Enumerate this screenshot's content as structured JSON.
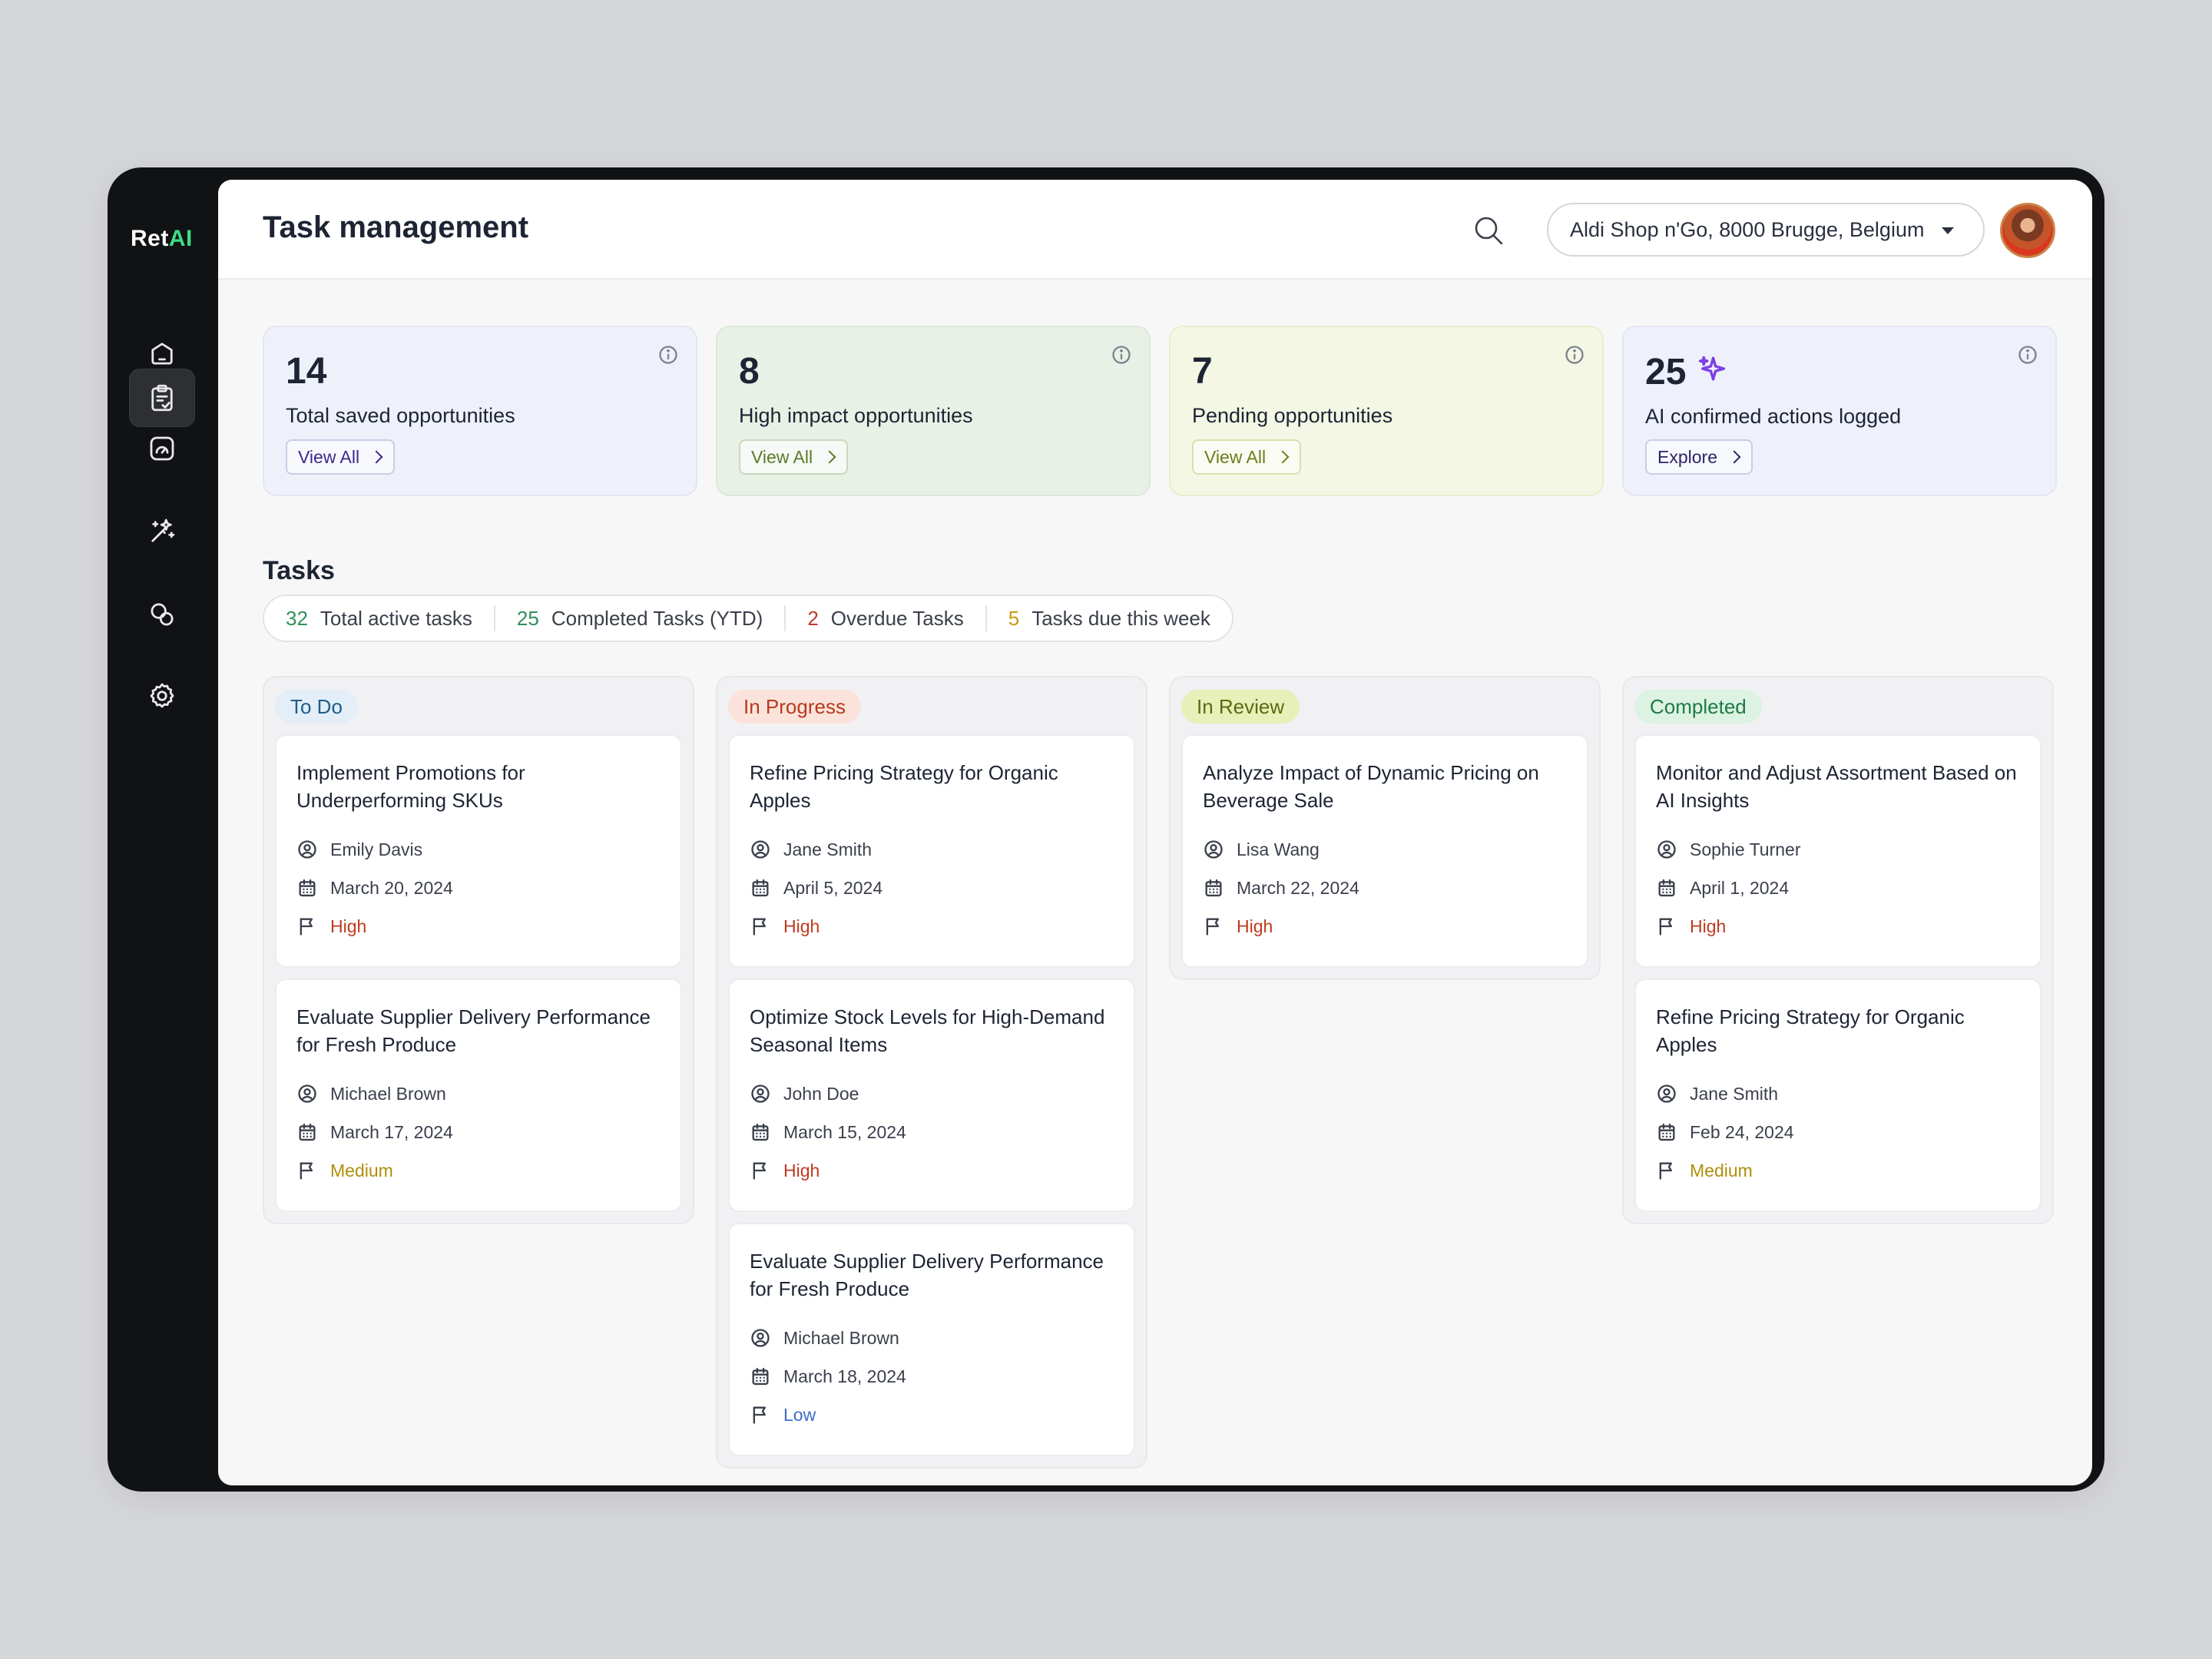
{
  "app": {
    "logo_prefix": "Ret",
    "logo_suffix": "AI"
  },
  "header": {
    "title": "Task management",
    "store": "Aldi Shop n'Go, 8000 Brugge, Belgium"
  },
  "sidebar": {
    "items": [
      {
        "name": "home",
        "icon": "home-icon",
        "active": false
      },
      {
        "name": "tasks",
        "icon": "clipboard-check-icon",
        "active": true
      },
      {
        "name": "dashboard",
        "icon": "gauge-icon",
        "active": false
      },
      {
        "name": "ai",
        "icon": "magic-wand-icon",
        "active": false
      },
      {
        "name": "shapes",
        "icon": "shapes-icon",
        "active": false
      },
      {
        "name": "settings",
        "icon": "gear-icon",
        "active": false
      }
    ]
  },
  "stats": [
    {
      "value": "14",
      "label": "Total saved opportunities",
      "action": "View All",
      "bg": "#eef1fa",
      "border": "#e3e6f2",
      "action_color": "#3b2a8f"
    },
    {
      "value": "8",
      "label": "High impact opportunities",
      "action": "View All",
      "bg": "#e9f1e6",
      "border": "#dde8d8",
      "action_color": "#5b7a2a"
    },
    {
      "value": "7",
      "label": "Pending opportunities",
      "action": "View All",
      "bg": "#f3f7e4",
      "border": "#e7eecf",
      "action_color": "#6b7d1a"
    },
    {
      "value": "25",
      "label": "AI confirmed actions logged",
      "action": "Explore",
      "bg": "#eef0fb",
      "border": "#e2e5f4",
      "action_color": "#2c2466"
    }
  ],
  "tasks": {
    "title": "Tasks",
    "summary": [
      {
        "count": "32",
        "label": "Total active tasks",
        "color": "#2f8f5b"
      },
      {
        "count": "25",
        "label": "Completed Tasks (YTD)",
        "color": "#2f8f5b"
      },
      {
        "count": "2",
        "label": "Overdue Tasks",
        "color": "#c0392b"
      },
      {
        "count": "5",
        "label": "Tasks due this week",
        "color": "#c99a12"
      }
    ]
  },
  "columns": [
    {
      "status": "To Do",
      "tag_bg": "#e4eef8",
      "tag_color": "#1e5e8a",
      "cards": [
        {
          "title": "Implement Promotions for Underperforming SKUs",
          "assignee": "Emily Davis",
          "date": "March 20, 2024",
          "priority": "High",
          "priority_color": "#c0391f"
        },
        {
          "title": "Evaluate Supplier Delivery Performance for Fresh Produce",
          "assignee": "Michael Brown",
          "date": "March 17, 2024",
          "priority": "Medium",
          "priority_color": "#b08e0a"
        }
      ]
    },
    {
      "status": "In Progress",
      "tag_bg": "#fbe3dc",
      "tag_color": "#b83a1c",
      "cards": [
        {
          "title": "Refine Pricing Strategy for Organic Apples",
          "assignee": "Jane Smith",
          "date": "April 5, 2024",
          "priority": "High",
          "priority_color": "#c0391f"
        },
        {
          "title": "Optimize Stock Levels for High-Demand Seasonal Items",
          "assignee": "John Doe",
          "date": "March 15, 2024",
          "priority": "High",
          "priority_color": "#c0391f"
        },
        {
          "title": "Evaluate Supplier Delivery Performance for Fresh Produce",
          "assignee": "Michael Brown",
          "date": "March 18, 2024",
          "priority": "Low",
          "priority_color": "#3a6fc4"
        }
      ]
    },
    {
      "status": "In Review",
      "tag_bg": "#e6f0b8",
      "tag_color": "#5a6b10",
      "cards": [
        {
          "title": "Analyze Impact of Dynamic Pricing on Beverage Sale",
          "assignee": "Lisa Wang",
          "date": "March 22, 2024",
          "priority": "High",
          "priority_color": "#c0391f"
        }
      ]
    },
    {
      "status": "Completed",
      "tag_bg": "#dcf2e3",
      "tag_color": "#1f7a43",
      "cards": [
        {
          "title": "Monitor and Adjust Assortment Based on AI Insights",
          "assignee": "Sophie Turner",
          "date": "April 1, 2024",
          "priority": "High",
          "priority_color": "#c0391f"
        },
        {
          "title": "Refine Pricing Strategy for Organic Apples",
          "assignee": "Jane Smith",
          "date": "Feb 24, 2024",
          "priority": "Medium",
          "priority_color": "#b08e0a"
        }
      ]
    }
  ]
}
